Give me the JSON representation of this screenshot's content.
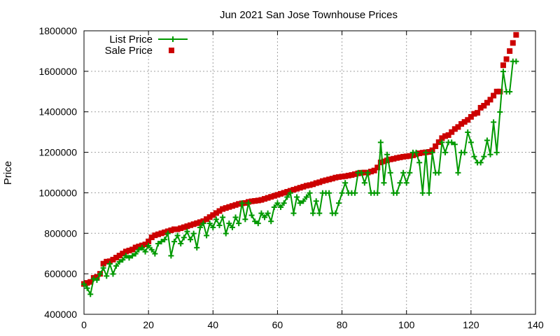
{
  "chart_data": {
    "type": "scatter",
    "title": "Jun 2021 San Jose Townhouse Prices",
    "xlabel": "",
    "ylabel": "Price",
    "xlim": [
      0,
      140
    ],
    "ylim": [
      400000,
      1800000
    ],
    "xticks": [
      "0",
      "20",
      "40",
      "60",
      "80",
      "100",
      "120",
      "140"
    ],
    "yticks": [
      "400000",
      "600000",
      "800000",
      "1000000",
      "1200000",
      "1400000",
      "1600000",
      "1800000"
    ],
    "grid": true,
    "legend_position": "top-left",
    "series": [
      {
        "name": "List Price",
        "style": "line-plus",
        "color": "#009900",
        "x": [
          0,
          1,
          2,
          3,
          4,
          5,
          6,
          7,
          8,
          9,
          10,
          11,
          12,
          13,
          14,
          15,
          16,
          17,
          18,
          19,
          20,
          21,
          22,
          23,
          24,
          25,
          26,
          27,
          28,
          29,
          30,
          31,
          32,
          33,
          34,
          35,
          36,
          37,
          38,
          39,
          40,
          41,
          42,
          43,
          44,
          45,
          46,
          47,
          48,
          49,
          50,
          51,
          52,
          53,
          54,
          55,
          56,
          57,
          58,
          59,
          60,
          61,
          62,
          63,
          64,
          65,
          66,
          67,
          68,
          69,
          70,
          71,
          72,
          73,
          74,
          75,
          76,
          77,
          78,
          79,
          80,
          81,
          82,
          83,
          84,
          85,
          86,
          87,
          88,
          89,
          90,
          91,
          92,
          93,
          94,
          95,
          96,
          97,
          98,
          99,
          100,
          101,
          102,
          103,
          104,
          105,
          106,
          107,
          108,
          109,
          110,
          111,
          112,
          113,
          114,
          115,
          116,
          117,
          118,
          119,
          120,
          121,
          122,
          123,
          124,
          125,
          126,
          127,
          128,
          129,
          130,
          131,
          132,
          133,
          134
        ],
        "values": [
          549000,
          529000,
          499000,
          575000,
          569000,
          599000,
          629000,
          589000,
          649000,
          599000,
          639000,
          659000,
          669000,
          689000,
          679000,
          689000,
          699000,
          719000,
          729000,
          709000,
          739000,
          719000,
          699000,
          749000,
          759000,
          769000,
          799000,
          689000,
          759000,
          789000,
          749000,
          779000,
          809000,
          769000,
          799000,
          729000,
          829000,
          849000,
          789000,
          849000,
          829000,
          869000,
          839000,
          879000,
          799000,
          849000,
          829000,
          879000,
          849000,
          949000,
          869000,
          949000,
          889000,
          859000,
          849000,
          899000,
          879000,
          899000,
          859000,
          929000,
          949000,
          929000,
          949000,
          979000,
          999000,
          899000,
          979000,
          949000,
          959000,
          979000,
          999000,
          899000,
          959000,
          899000,
          999000,
          999000,
          999000,
          899000,
          899000,
          949000,
          999000,
          1049000,
          999000,
          999000,
          999000,
          1099000,
          1099000,
          1049000,
          1099000,
          999000,
          999000,
          999000,
          1249000,
          1049000,
          1189000,
          1099000,
          999000,
          999000,
          1049000,
          1099000,
          1049000,
          1099000,
          1199000,
          1199000,
          1149000,
          999000,
          1199000,
          999000,
          1199000,
          1099000,
          1099000,
          1249000,
          1199000,
          1249000,
          1249000,
          1239000,
          1099000,
          1199000,
          1199000,
          1299000,
          1249000,
          1179000,
          1149000,
          1149000,
          1179000,
          1259000,
          1189000,
          1349000,
          1199000,
          1399000,
          1599000,
          1499000,
          1499000,
          1649000,
          1649000
        ]
      },
      {
        "name": "Sale Price",
        "style": "points-square",
        "color": "#cc0000",
        "x": [
          0,
          1,
          2,
          3,
          4,
          5,
          6,
          7,
          8,
          9,
          10,
          11,
          12,
          13,
          14,
          15,
          16,
          17,
          18,
          19,
          20,
          21,
          22,
          23,
          24,
          25,
          26,
          27,
          28,
          29,
          30,
          31,
          32,
          33,
          34,
          35,
          36,
          37,
          38,
          39,
          40,
          41,
          42,
          43,
          44,
          45,
          46,
          47,
          48,
          49,
          50,
          51,
          52,
          53,
          54,
          55,
          56,
          57,
          58,
          59,
          60,
          61,
          62,
          63,
          64,
          65,
          66,
          67,
          68,
          69,
          70,
          71,
          72,
          73,
          74,
          75,
          76,
          77,
          78,
          79,
          80,
          81,
          82,
          83,
          84,
          85,
          86,
          87,
          88,
          89,
          90,
          91,
          92,
          93,
          94,
          95,
          96,
          97,
          98,
          99,
          100,
          101,
          102,
          103,
          104,
          105,
          106,
          107,
          108,
          109,
          110,
          111,
          112,
          113,
          114,
          115,
          116,
          117,
          118,
          119,
          120,
          121,
          122,
          123,
          124,
          125,
          126,
          127,
          128,
          129,
          130,
          131,
          132,
          133,
          134
        ],
        "values": [
          550000,
          555000,
          560000,
          580000,
          585000,
          600000,
          650000,
          660000,
          662000,
          670000,
          680000,
          690000,
          700000,
          710000,
          715000,
          720000,
          730000,
          735000,
          740000,
          745000,
          760000,
          780000,
          790000,
          795000,
          800000,
          805000,
          810000,
          815000,
          820000,
          820000,
          825000,
          830000,
          835000,
          840000,
          845000,
          850000,
          855000,
          860000,
          870000,
          880000,
          890000,
          900000,
          910000,
          920000,
          925000,
          930000,
          935000,
          940000,
          945000,
          948000,
          950000,
          955000,
          958000,
          960000,
          962000,
          965000,
          970000,
          975000,
          980000,
          985000,
          990000,
          995000,
          1000000,
          1005000,
          1010000,
          1015000,
          1020000,
          1025000,
          1030000,
          1035000,
          1038000,
          1042000,
          1048000,
          1052000,
          1058000,
          1062000,
          1066000,
          1070000,
          1075000,
          1078000,
          1080000,
          1082000,
          1085000,
          1088000,
          1092000,
          1096000,
          1099000,
          1100000,
          1100000,
          1105000,
          1110000,
          1125000,
          1150000,
          1155000,
          1160000,
          1165000,
          1168000,
          1172000,
          1175000,
          1178000,
          1180000,
          1182000,
          1185000,
          1190000,
          1195000,
          1198000,
          1200000,
          1202000,
          1210000,
          1230000,
          1250000,
          1270000,
          1280000,
          1285000,
          1300000,
          1315000,
          1325000,
          1340000,
          1350000,
          1360000,
          1375000,
          1390000,
          1395000,
          1420000,
          1430000,
          1445000,
          1460000,
          1480000,
          1500000,
          1500000,
          1630000,
          1660000,
          1700000,
          1740000,
          1780000
        ]
      }
    ]
  }
}
